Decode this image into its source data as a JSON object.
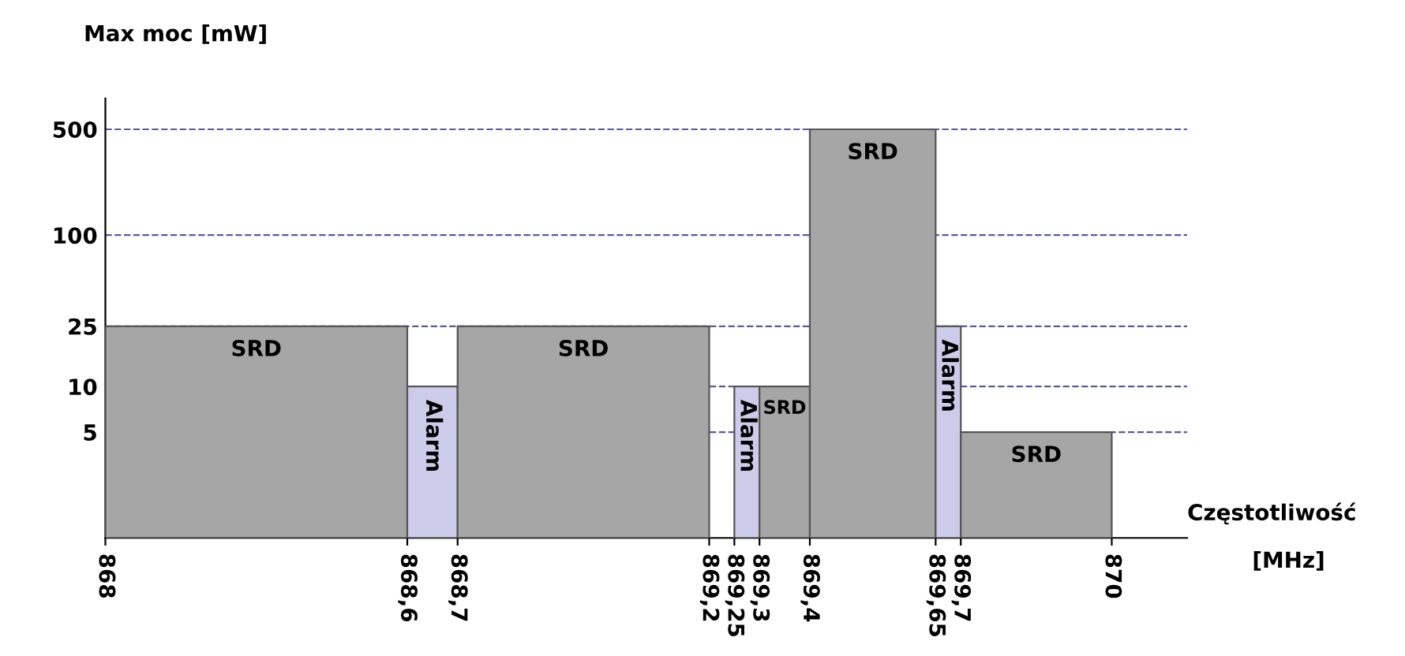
{
  "chart_data": {
    "type": "histogram",
    "ylabel": "Max moc [mW]",
    "xlabel": "Częstotliwość [MHz]",
    "bins": [
      868,
      868.6,
      868.7,
      869.2,
      869.25,
      869.3,
      869.4,
      869.65,
      869.7,
      870
    ],
    "values": [
      25,
      10,
      25,
      null,
      10,
      10,
      500,
      25,
      5
    ],
    "colors": [
      "#a6a6a6",
      "#ccccea",
      "#a6a6a6",
      null,
      "#ccccea",
      "#a6a6a6",
      "#a6a6a6",
      "#ccccea",
      "#a6a6a6"
    ],
    "log": "y",
    "ylim": [
      1,
      800
    ],
    "yticks": [
      5,
      10,
      25,
      100,
      500
    ],
    "xlim": [
      868,
      870.15
    ],
    "xticks": [
      868,
      {
        "value": 868.6,
        "label": "868,6"
      },
      {
        "value": 868.7,
        "label": "868,7"
      },
      {
        "value": 869.2,
        "label": "869,2"
      },
      {
        "value": 869.25,
        "label": "869,25"
      },
      {
        "value": 869.3,
        "label": "869,3"
      },
      {
        "value": 869.4,
        "label": "869,4"
      },
      {
        "value": 869.65,
        "label": "869,65"
      },
      {
        "value": 869.7,
        "label": "869,7"
      },
      870
    ],
    "grid": "y",
    "value_labels": [
      "SRD",
      "Alarm",
      "SRD",
      null,
      "Alarm",
      "SRD",
      "SRD",
      "Alarm",
      "SRD"
    ]
  }
}
